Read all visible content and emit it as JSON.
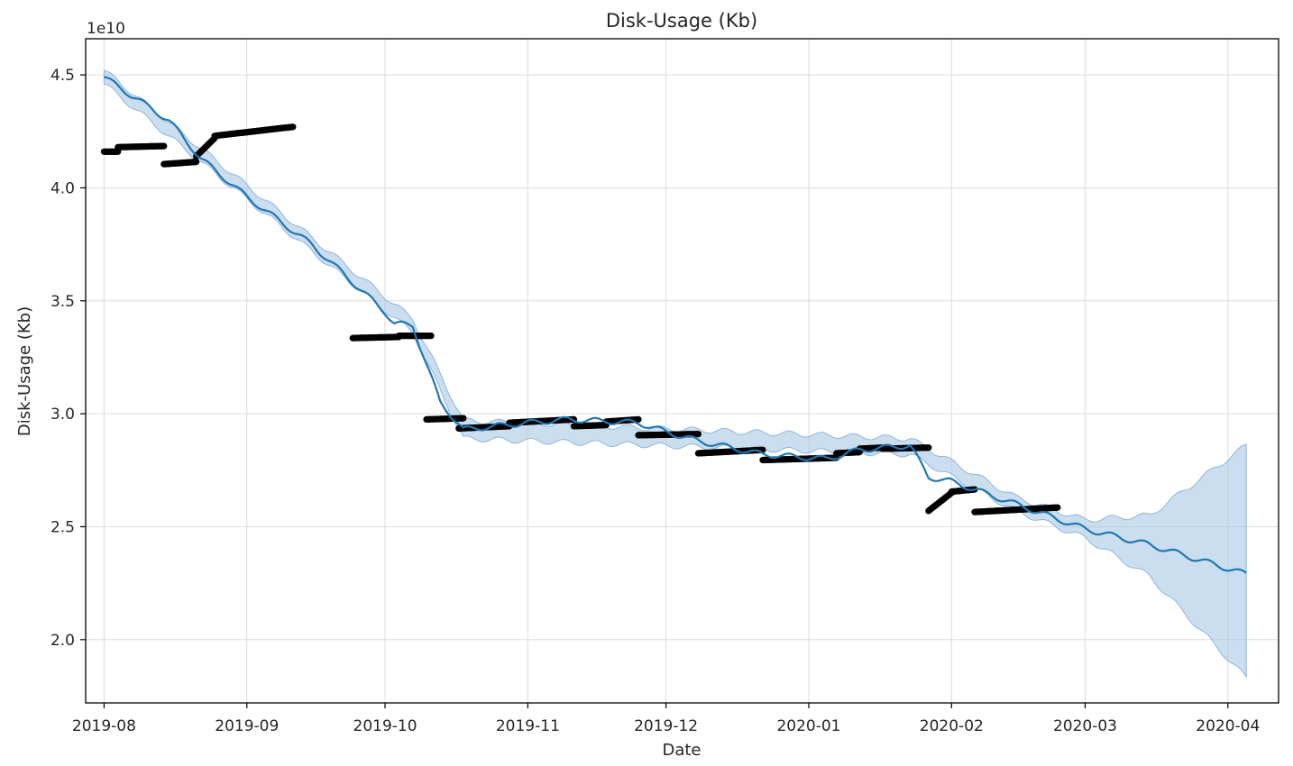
{
  "chart_data": {
    "type": "line",
    "title": "Disk-Usage (Kb)",
    "xlabel": "Date",
    "ylabel": "Disk-Usage (Kb)",
    "y_offset_label": "1e10",
    "x_axis_type": "date",
    "xlim": [
      "2019-07-28",
      "2020-04-12"
    ],
    "ylim": [
      1.72,
      4.66
    ],
    "grid": true,
    "x_ticks": [
      "2019-08-01",
      "2019-09-01",
      "2019-10-01",
      "2019-11-01",
      "2019-12-01",
      "2020-01-01",
      "2020-02-01",
      "2020-03-01",
      "2020-04-01"
    ],
    "x_tick_labels": [
      "2019-08",
      "2019-09",
      "2019-10",
      "2019-11",
      "2019-12",
      "2020-01",
      "2020-02",
      "2020-03",
      "2020-04"
    ],
    "y_ticks": [
      2.0,
      2.5,
      3.0,
      3.5,
      4.0,
      4.5
    ],
    "y_tick_labels": [
      "2.0",
      "2.5",
      "3.0",
      "3.5",
      "4.0",
      "4.5"
    ],
    "colors": {
      "forecast": "#1f77b4",
      "band": "#a9c8e4",
      "observed": "#000000",
      "grid": "#dcdcdc"
    },
    "series": [
      {
        "kind": "observed_points",
        "segments": [
          {
            "from": "2019-08-01",
            "to": "2019-08-04",
            "y0": 4.16,
            "y1": 4.16
          },
          {
            "from": "2019-08-04",
            "to": "2019-08-14",
            "y0": 4.18,
            "y1": 4.185
          },
          {
            "from": "2019-08-14",
            "to": "2019-08-21",
            "y0": 4.105,
            "y1": 4.115
          },
          {
            "from": "2019-08-21",
            "to": "2019-08-25",
            "y0": 4.14,
            "y1": 4.22
          },
          {
            "from": "2019-08-25",
            "to": "2019-09-11",
            "y0": 4.23,
            "y1": 4.27
          },
          {
            "from": "2019-09-24",
            "to": "2019-10-04",
            "y0": 3.335,
            "y1": 3.34
          },
          {
            "from": "2019-10-04",
            "to": "2019-10-11",
            "y0": 3.345,
            "y1": 3.345
          },
          {
            "from": "2019-10-10",
            "to": "2019-10-18",
            "y0": 2.975,
            "y1": 2.98
          },
          {
            "from": "2019-10-17",
            "to": "2019-10-28",
            "y0": 2.935,
            "y1": 2.945
          },
          {
            "from": "2019-10-28",
            "to": "2019-11-11",
            "y0": 2.96,
            "y1": 2.975
          },
          {
            "from": "2019-11-11",
            "to": "2019-11-18",
            "y0": 2.945,
            "y1": 2.95
          },
          {
            "from": "2019-11-18",
            "to": "2019-11-25",
            "y0": 2.965,
            "y1": 2.975
          },
          {
            "from": "2019-11-25",
            "to": "2019-12-08",
            "y0": 2.905,
            "y1": 2.91
          },
          {
            "from": "2019-12-08",
            "to": "2019-12-22",
            "y0": 2.825,
            "y1": 2.84
          },
          {
            "from": "2019-12-22",
            "to": "2020-01-07",
            "y0": 2.795,
            "y1": 2.805
          },
          {
            "from": "2020-01-07",
            "to": "2020-01-12",
            "y0": 2.825,
            "y1": 2.83
          },
          {
            "from": "2020-01-12",
            "to": "2020-01-17",
            "y0": 2.845,
            "y1": 2.85
          },
          {
            "from": "2020-01-17",
            "to": "2020-01-27",
            "y0": 2.845,
            "y1": 2.85
          },
          {
            "from": "2020-01-27",
            "to": "2020-02-01",
            "y0": 2.57,
            "y1": 2.65
          },
          {
            "from": "2020-02-01",
            "to": "2020-02-06",
            "y0": 2.655,
            "y1": 2.665
          },
          {
            "from": "2020-02-06",
            "to": "2020-02-24",
            "y0": 2.565,
            "y1": 2.585
          }
        ]
      },
      {
        "kind": "forecast_line",
        "points": [
          [
            "2019-08-01",
            4.49
          ],
          [
            "2019-08-15",
            4.3
          ],
          [
            "2019-08-22",
            4.13
          ],
          [
            "2019-09-01",
            3.96
          ],
          [
            "2019-09-15",
            3.75
          ],
          [
            "2019-10-01",
            3.45
          ],
          [
            "2019-10-03",
            3.4
          ],
          [
            "2019-10-07",
            3.39
          ],
          [
            "2019-10-13",
            3.05
          ],
          [
            "2019-10-18",
            2.93
          ],
          [
            "2019-11-01",
            2.96
          ],
          [
            "2019-11-10",
            2.975
          ],
          [
            "2019-11-25",
            2.96
          ],
          [
            "2019-12-01",
            2.92
          ],
          [
            "2019-12-08",
            2.88
          ],
          [
            "2019-12-22",
            2.82
          ],
          [
            "2020-01-05",
            2.8
          ],
          [
            "2020-01-12",
            2.84
          ],
          [
            "2020-01-23",
            2.86
          ],
          [
            "2020-01-27",
            2.72
          ],
          [
            "2020-02-01",
            2.7
          ],
          [
            "2020-02-15",
            2.6
          ],
          [
            "2020-03-01",
            2.49
          ],
          [
            "2020-03-15",
            2.42
          ],
          [
            "2020-04-05",
            2.29
          ]
        ],
        "band_upper": [
          [
            "2019-08-01",
            4.52
          ],
          [
            "2019-10-07",
            3.42
          ],
          [
            "2019-10-18",
            2.97
          ],
          [
            "2020-01-23",
            2.89
          ],
          [
            "2020-02-15",
            2.63
          ],
          [
            "2020-03-01",
            2.53
          ],
          [
            "2020-03-15",
            2.55
          ],
          [
            "2020-04-05",
            2.86
          ]
        ],
        "band_lower": [
          [
            "2019-08-01",
            4.46
          ],
          [
            "2019-10-07",
            3.36
          ],
          [
            "2019-10-18",
            2.89
          ],
          [
            "2020-01-23",
            2.82
          ],
          [
            "2020-02-15",
            2.57
          ],
          [
            "2020-03-01",
            2.45
          ],
          [
            "2020-03-15",
            2.28
          ],
          [
            "2020-04-05",
            1.83
          ]
        ]
      }
    ]
  }
}
